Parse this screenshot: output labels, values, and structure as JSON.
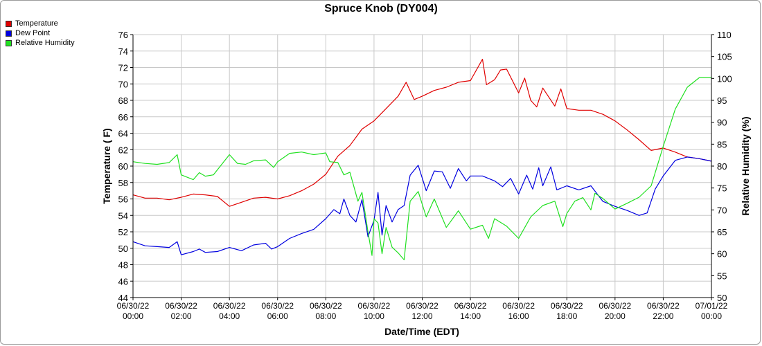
{
  "chart_data": {
    "type": "line",
    "title": "Spruce Knob (DY004)",
    "xlabel": "Date/Time (EDT)",
    "ylabel": "Temperature ( F)",
    "y2label": "Relative Humidity (%)",
    "ylim": [
      44,
      76
    ],
    "y2lim": [
      50,
      110
    ],
    "xlim": [
      "2022-06-30 00:00",
      "2022-07-01 00:00"
    ],
    "grid": true,
    "legend_position": "top-left",
    "x_tick_labels": [
      [
        "06/30/22",
        "00:00"
      ],
      [
        "06/30/22",
        "02:00"
      ],
      [
        "06/30/22",
        "04:00"
      ],
      [
        "06/30/22",
        "06:00"
      ],
      [
        "06/30/22",
        "08:00"
      ],
      [
        "06/30/22",
        "10:00"
      ],
      [
        "06/30/22",
        "12:00"
      ],
      [
        "06/30/22",
        "14:00"
      ],
      [
        "06/30/22",
        "16:00"
      ],
      [
        "06/30/22",
        "18:00"
      ],
      [
        "06/30/22",
        "20:00"
      ],
      [
        "06/30/22",
        "22:00"
      ],
      [
        "07/01/22",
        "00:00"
      ]
    ],
    "y_ticks": [
      44,
      46,
      48,
      50,
      52,
      54,
      56,
      58,
      60,
      62,
      64,
      66,
      68,
      70,
      72,
      74,
      76
    ],
    "y2_ticks": [
      50,
      55,
      60,
      65,
      70,
      75,
      80,
      85,
      90,
      95,
      100,
      105,
      110
    ],
    "series": [
      {
        "name": "Temperature",
        "axis": "left",
        "color": "#e00000",
        "points": [
          [
            "2022-06-30 00:00",
            56.5
          ],
          [
            "2022-06-30 00:30",
            56.1
          ],
          [
            "2022-06-30 01:00",
            56.1
          ],
          [
            "2022-06-30 01:30",
            55.9
          ],
          [
            "2022-06-30 02:00",
            56.2
          ],
          [
            "2022-06-30 02:30",
            56.6
          ],
          [
            "2022-06-30 03:00",
            56.5
          ],
          [
            "2022-06-30 03:30",
            56.3
          ],
          [
            "2022-06-30 04:00",
            55.1
          ],
          [
            "2022-06-30 04:30",
            55.6
          ],
          [
            "2022-06-30 05:00",
            56.1
          ],
          [
            "2022-06-30 05:30",
            56.2
          ],
          [
            "2022-06-30 06:00",
            56.0
          ],
          [
            "2022-06-30 06:30",
            56.4
          ],
          [
            "2022-06-30 07:00",
            57.0
          ],
          [
            "2022-06-30 07:30",
            57.8
          ],
          [
            "2022-06-30 08:00",
            59.0
          ],
          [
            "2022-06-30 08:30",
            61.2
          ],
          [
            "2022-06-30 09:00",
            62.5
          ],
          [
            "2022-06-30 09:30",
            64.5
          ],
          [
            "2022-06-30 10:00",
            65.5
          ],
          [
            "2022-06-30 10:30",
            67.0
          ],
          [
            "2022-06-30 11:00",
            68.5
          ],
          [
            "2022-06-30 11:20",
            70.2
          ],
          [
            "2022-06-30 11:40",
            68.1
          ],
          [
            "2022-06-30 12:00",
            68.5
          ],
          [
            "2022-06-30 12:30",
            69.2
          ],
          [
            "2022-06-30 13:00",
            69.6
          ],
          [
            "2022-06-30 13:30",
            70.2
          ],
          [
            "2022-06-30 14:00",
            70.4
          ],
          [
            "2022-06-30 14:30",
            73.0
          ],
          [
            "2022-06-30 14:40",
            69.9
          ],
          [
            "2022-06-30 15:00",
            70.5
          ],
          [
            "2022-06-30 15:15",
            71.7
          ],
          [
            "2022-06-30 15:30",
            71.8
          ],
          [
            "2022-06-30 16:00",
            68.9
          ],
          [
            "2022-06-30 16:15",
            70.7
          ],
          [
            "2022-06-30 16:30",
            68.0
          ],
          [
            "2022-06-30 16:45",
            67.2
          ],
          [
            "2022-06-30 17:00",
            69.5
          ],
          [
            "2022-06-30 17:30",
            67.3
          ],
          [
            "2022-06-30 17:45",
            69.4
          ],
          [
            "2022-06-30 18:00",
            67.0
          ],
          [
            "2022-06-30 18:30",
            66.8
          ],
          [
            "2022-06-30 19:00",
            66.8
          ],
          [
            "2022-06-30 19:30",
            66.3
          ],
          [
            "2022-06-30 20:00",
            65.5
          ],
          [
            "2022-06-30 20:30",
            64.4
          ],
          [
            "2022-06-30 21:00",
            63.2
          ],
          [
            "2022-06-30 21:30",
            61.9
          ],
          [
            "2022-06-30 22:00",
            62.2
          ],
          [
            "2022-06-30 22:30",
            61.7
          ],
          [
            "2022-06-30 23:00",
            61.1
          ],
          [
            "2022-06-30 23:30",
            60.9
          ],
          [
            "2022-07-01 00:00",
            60.6
          ]
        ]
      },
      {
        "name": "Dew Point",
        "axis": "left",
        "color": "#0000e0",
        "points": [
          [
            "2022-06-30 00:00",
            50.8
          ],
          [
            "2022-06-30 00:30",
            50.3
          ],
          [
            "2022-06-30 01:00",
            50.2
          ],
          [
            "2022-06-30 01:30",
            50.1
          ],
          [
            "2022-06-30 01:50",
            50.8
          ],
          [
            "2022-06-30 02:00",
            49.2
          ],
          [
            "2022-06-30 02:30",
            49.6
          ],
          [
            "2022-06-30 02:45",
            49.9
          ],
          [
            "2022-06-30 03:00",
            49.5
          ],
          [
            "2022-06-30 03:30",
            49.6
          ],
          [
            "2022-06-30 04:00",
            50.1
          ],
          [
            "2022-06-30 04:30",
            49.7
          ],
          [
            "2022-06-30 05:00",
            50.4
          ],
          [
            "2022-06-30 05:30",
            50.6
          ],
          [
            "2022-06-30 05:45",
            49.9
          ],
          [
            "2022-06-30 06:00",
            50.2
          ],
          [
            "2022-06-30 06:30",
            51.2
          ],
          [
            "2022-06-30 07:00",
            51.8
          ],
          [
            "2022-06-30 07:30",
            52.3
          ],
          [
            "2022-06-30 08:00",
            53.6
          ],
          [
            "2022-06-30 08:20",
            54.7
          ],
          [
            "2022-06-30 08:35",
            54.2
          ],
          [
            "2022-06-30 08:45",
            56.0
          ],
          [
            "2022-06-30 09:00",
            54.0
          ],
          [
            "2022-06-30 09:15",
            53.2
          ],
          [
            "2022-06-30 09:30",
            55.9
          ],
          [
            "2022-06-30 09:45",
            51.4
          ],
          [
            "2022-06-30 10:00",
            53.4
          ],
          [
            "2022-06-30 10:10",
            56.8
          ],
          [
            "2022-06-30 10:20",
            51.6
          ],
          [
            "2022-06-30 10:30",
            55.2
          ],
          [
            "2022-06-30 10:45",
            53.2
          ],
          [
            "2022-06-30 11:00",
            54.7
          ],
          [
            "2022-06-30 11:15",
            55.2
          ],
          [
            "2022-06-30 11:30",
            58.9
          ],
          [
            "2022-06-30 11:50",
            60.1
          ],
          [
            "2022-06-30 12:10",
            57.0
          ],
          [
            "2022-06-30 12:30",
            59.4
          ],
          [
            "2022-06-30 12:50",
            59.3
          ],
          [
            "2022-06-30 13:10",
            57.3
          ],
          [
            "2022-06-30 13:30",
            59.7
          ],
          [
            "2022-06-30 13:50",
            58.2
          ],
          [
            "2022-06-30 14:00",
            58.8
          ],
          [
            "2022-06-30 14:30",
            58.8
          ],
          [
            "2022-06-30 15:00",
            58.2
          ],
          [
            "2022-06-30 15:20",
            57.5
          ],
          [
            "2022-06-30 15:40",
            58.5
          ],
          [
            "2022-06-30 16:00",
            56.6
          ],
          [
            "2022-06-30 16:20",
            58.9
          ],
          [
            "2022-06-30 16:35",
            57.2
          ],
          [
            "2022-06-30 16:50",
            59.8
          ],
          [
            "2022-06-30 17:00",
            57.6
          ],
          [
            "2022-06-30 17:20",
            59.9
          ],
          [
            "2022-06-30 17:35",
            57.1
          ],
          [
            "2022-06-30 18:00",
            57.6
          ],
          [
            "2022-06-30 18:30",
            57.1
          ],
          [
            "2022-06-30 19:00",
            57.6
          ],
          [
            "2022-06-30 19:30",
            55.7
          ],
          [
            "2022-06-30 20:00",
            55.1
          ],
          [
            "2022-06-30 20:30",
            54.6
          ],
          [
            "2022-06-30 21:00",
            54.0
          ],
          [
            "2022-06-30 21:20",
            54.3
          ],
          [
            "2022-06-30 21:40",
            57.2
          ],
          [
            "2022-06-30 22:00",
            58.8
          ],
          [
            "2022-06-30 22:30",
            60.7
          ],
          [
            "2022-06-30 23:00",
            61.1
          ],
          [
            "2022-06-30 23:30",
            60.9
          ],
          [
            "2022-07-01 00:00",
            60.6
          ]
        ]
      },
      {
        "name": "Relative Humidity",
        "axis": "right",
        "color": "#20e020",
        "points": [
          [
            "2022-06-30 00:00",
            81.0
          ],
          [
            "2022-06-30 00:30",
            80.6
          ],
          [
            "2022-06-30 01:00",
            80.4
          ],
          [
            "2022-06-30 01:30",
            80.8
          ],
          [
            "2022-06-30 01:50",
            82.6
          ],
          [
            "2022-06-30 02:00",
            78.0
          ],
          [
            "2022-06-30 02:30",
            76.9
          ],
          [
            "2022-06-30 02:45",
            78.5
          ],
          [
            "2022-06-30 03:00",
            77.7
          ],
          [
            "2022-06-30 03:20",
            78.0
          ],
          [
            "2022-06-30 04:00",
            82.6
          ],
          [
            "2022-06-30 04:20",
            80.6
          ],
          [
            "2022-06-30 04:40",
            80.4
          ],
          [
            "2022-06-30 05:00",
            81.2
          ],
          [
            "2022-06-30 05:30",
            81.4
          ],
          [
            "2022-06-30 05:50",
            79.7
          ],
          [
            "2022-06-30 06:00",
            81.0
          ],
          [
            "2022-06-30 06:30",
            82.9
          ],
          [
            "2022-06-30 07:00",
            83.2
          ],
          [
            "2022-06-30 07:30",
            82.6
          ],
          [
            "2022-06-30 08:00",
            83.0
          ],
          [
            "2022-06-30 08:10",
            81.0
          ],
          [
            "2022-06-30 08:30",
            80.8
          ],
          [
            "2022-06-30 08:45",
            78.0
          ],
          [
            "2022-06-30 09:00",
            78.6
          ],
          [
            "2022-06-30 09:20",
            72.0
          ],
          [
            "2022-06-30 09:30",
            74.0
          ],
          [
            "2022-06-30 09:45",
            65.0
          ],
          [
            "2022-06-30 09:55",
            59.6
          ],
          [
            "2022-06-30 10:00",
            68.0
          ],
          [
            "2022-06-30 10:10",
            67.0
          ],
          [
            "2022-06-30 10:20",
            60.0
          ],
          [
            "2022-06-30 10:30",
            66.0
          ],
          [
            "2022-06-30 10:45",
            61.5
          ],
          [
            "2022-06-30 11:00",
            60.2
          ],
          [
            "2022-06-30 11:15",
            58.6
          ],
          [
            "2022-06-30 11:30",
            72.0
          ],
          [
            "2022-06-30 11:50",
            74.2
          ],
          [
            "2022-06-30 12:10",
            68.4
          ],
          [
            "2022-06-30 12:30",
            72.5
          ],
          [
            "2022-06-30 13:00",
            66.0
          ],
          [
            "2022-06-30 13:30",
            69.8
          ],
          [
            "2022-06-30 14:00",
            65.6
          ],
          [
            "2022-06-30 14:30",
            66.5
          ],
          [
            "2022-06-30 14:45",
            63.5
          ],
          [
            "2022-06-30 15:00",
            68.0
          ],
          [
            "2022-06-30 15:30",
            66.3
          ],
          [
            "2022-06-30 16:00",
            63.5
          ],
          [
            "2022-06-30 16:30",
            68.4
          ],
          [
            "2022-06-30 17:00",
            71.0
          ],
          [
            "2022-06-30 17:30",
            72.0
          ],
          [
            "2022-06-30 17:50",
            66.2
          ],
          [
            "2022-06-30 18:00",
            69.2
          ],
          [
            "2022-06-30 18:20",
            72.0
          ],
          [
            "2022-06-30 18:40",
            72.8
          ],
          [
            "2022-06-30 19:00",
            70.0
          ],
          [
            "2022-06-30 19:10",
            73.8
          ],
          [
            "2022-06-30 19:30",
            72.6
          ],
          [
            "2022-06-30 20:00",
            70.2
          ],
          [
            "2022-06-30 20:30",
            71.5
          ],
          [
            "2022-06-30 21:00",
            72.9
          ],
          [
            "2022-06-30 21:30",
            75.5
          ],
          [
            "2022-06-30 22:00",
            84.5
          ],
          [
            "2022-06-30 22:30",
            93.0
          ],
          [
            "2022-06-30 23:00",
            98.0
          ],
          [
            "2022-06-30 23:30",
            100.2
          ],
          [
            "2022-07-01 00:00",
            100.2
          ]
        ]
      }
    ]
  }
}
